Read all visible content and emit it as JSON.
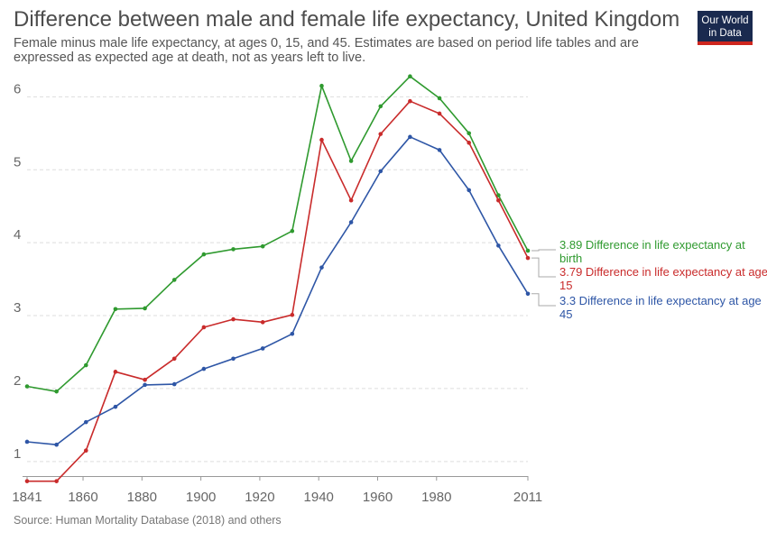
{
  "header": {
    "title": "Difference between male and female life expectancy, United Kingdom",
    "subtitle": "Female minus male life expectancy, at ages 0, 15, and 45. Estimates are based on period life tables and are expressed as expected age at death, not as years left to live.",
    "logo_line1": "Our World",
    "logo_line2": "in Data",
    "logo_colors": {
      "background": "#1a2a4f",
      "accent": "#ce261e"
    }
  },
  "footer": {
    "source": "Source: Human Mortality Database (2018) and others"
  },
  "chart_data": {
    "type": "line",
    "title": "Difference between male and female life expectancy, United Kingdom",
    "xlabel": "",
    "ylabel": "",
    "xlim": [
      1841,
      2011
    ],
    "ylim": [
      0.8,
      6.4
    ],
    "x_ticks": [
      1841,
      1860,
      1880,
      1900,
      1920,
      1940,
      1960,
      1980,
      2011
    ],
    "y_ticks": [
      1,
      2,
      3,
      4,
      5,
      6
    ],
    "grid": "horizontal dashed",
    "legend": "end-of-line labels at right",
    "x": [
      1841,
      1851,
      1861,
      1871,
      1881,
      1891,
      1901,
      1911,
      1921,
      1931,
      1941,
      1951,
      1961,
      1971,
      1981,
      1991,
      2001,
      2011
    ],
    "series": [
      {
        "name": "Difference in life expectancy at birth",
        "end_label": "3.89 Difference in life expectancy at birth",
        "color": "#2f9a2f",
        "values": [
          2.03,
          1.96,
          2.32,
          3.09,
          3.1,
          3.49,
          3.84,
          3.91,
          3.95,
          4.16,
          6.15,
          5.12,
          5.87,
          6.28,
          5.98,
          5.5,
          4.65,
          3.89
        ]
      },
      {
        "name": "Difference in life expectancy at age 15",
        "end_label": "3.79 Difference in life expectancy at age 15",
        "color": "#c92b2b",
        "values": [
          0.73,
          0.73,
          1.15,
          2.23,
          2.12,
          2.41,
          2.84,
          2.95,
          2.91,
          3.01,
          5.41,
          4.58,
          5.49,
          5.94,
          5.77,
          5.37,
          4.58,
          3.79
        ]
      },
      {
        "name": "Difference in life expectancy at age 45",
        "end_label": "3.3 Difference in life expectancy at age 45",
        "color": "#2e56a6",
        "values": [
          1.27,
          1.23,
          1.54,
          1.75,
          2.05,
          2.06,
          2.27,
          2.41,
          2.55,
          2.75,
          3.66,
          4.28,
          4.98,
          5.45,
          5.27,
          4.72,
          3.96,
          3.3
        ]
      }
    ]
  }
}
